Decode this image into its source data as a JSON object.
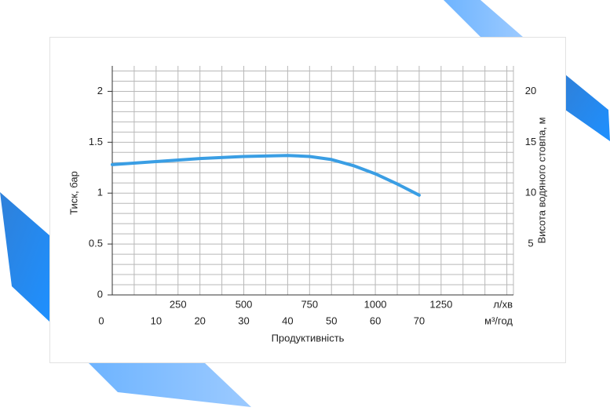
{
  "chart_data": {
    "type": "line",
    "x": [
      0,
      10,
      20,
      30,
      40,
      45,
      50,
      55,
      60,
      65,
      70
    ],
    "series": [
      {
        "color": "#3a9ee4",
        "values": [
          1.28,
          1.31,
          1.34,
          1.36,
          1.37,
          1.36,
          1.33,
          1.27,
          1.19,
          1.09,
          0.98
        ]
      }
    ],
    "xlim": [
      0,
      91.5
    ],
    "xticks": [
      0,
      10,
      20,
      30,
      40,
      50,
      60,
      70
    ],
    "x_unit": "м³/год",
    "x2lim": [
      0,
      1525
    ],
    "x2ticks": [
      250,
      500,
      750,
      1000,
      1250
    ],
    "x2_unit": "л/хв",
    "xlabel": "Продуктивність",
    "ylim": [
      0,
      2.25
    ],
    "yticks": [
      0,
      0.5,
      1,
      1.5,
      2
    ],
    "ylabel": "Тиск, бар",
    "y2lim": [
      0,
      22.5
    ],
    "y2ticks": [
      5,
      10,
      15,
      20
    ],
    "y2label": "Висота водяного стовпа, м",
    "grid": true,
    "x_grid_step": 5,
    "y_grid_step": 0.1
  }
}
